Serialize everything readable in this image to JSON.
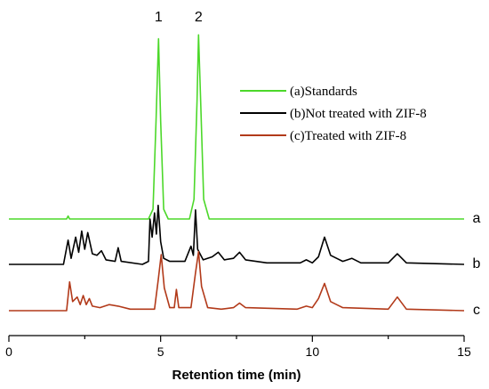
{
  "chart_data": {
    "type": "line",
    "xlabel": "Retention time (min)",
    "ylabel": "",
    "xlim": [
      0,
      15
    ],
    "x_ticks": [
      0,
      5,
      10,
      15
    ],
    "grid": false,
    "legend_position": "top-right",
    "peak_labels": [
      {
        "text": "1",
        "x": 4.93
      },
      {
        "text": "2",
        "x": 6.25
      }
    ],
    "series": [
      {
        "name": "(a)Standards",
        "trace_label": "a",
        "color": "#4cd82a",
        "points": [
          [
            0,
            0
          ],
          [
            1.9,
            0
          ],
          [
            1.95,
            0.15
          ],
          [
            2.0,
            0
          ],
          [
            4.6,
            0
          ],
          [
            4.75,
            0.5
          ],
          [
            4.85,
            5.0
          ],
          [
            4.93,
            9.2
          ],
          [
            5.0,
            5.0
          ],
          [
            5.1,
            0.5
          ],
          [
            5.25,
            0
          ],
          [
            5.95,
            0
          ],
          [
            6.1,
            1.0
          ],
          [
            6.2,
            6.0
          ],
          [
            6.25,
            9.4
          ],
          [
            6.32,
            6.0
          ],
          [
            6.42,
            1.0
          ],
          [
            6.6,
            0
          ],
          [
            15,
            0
          ]
        ]
      },
      {
        "name": "(b)Not treated with ZIF-8",
        "trace_label": "b",
        "color": "#000000",
        "points": [
          [
            0,
            0
          ],
          [
            1.8,
            0
          ],
          [
            1.95,
            1.6
          ],
          [
            2.05,
            0.4
          ],
          [
            2.2,
            1.8
          ],
          [
            2.3,
            0.8
          ],
          [
            2.4,
            2.2
          ],
          [
            2.5,
            1.0
          ],
          [
            2.6,
            2.1
          ],
          [
            2.75,
            0.7
          ],
          [
            2.9,
            0.6
          ],
          [
            3.05,
            0.9
          ],
          [
            3.2,
            0.3
          ],
          [
            3.5,
            0.2
          ],
          [
            3.6,
            1.1
          ],
          [
            3.7,
            0.2
          ],
          [
            4.4,
            0
          ],
          [
            4.6,
            0.2
          ],
          [
            4.65,
            3.0
          ],
          [
            4.72,
            1.8
          ],
          [
            4.8,
            3.4
          ],
          [
            4.86,
            2.0
          ],
          [
            4.92,
            3.9
          ],
          [
            5.0,
            1.5
          ],
          [
            5.1,
            0.4
          ],
          [
            5.3,
            0.2
          ],
          [
            5.8,
            0.2
          ],
          [
            6.0,
            1.2
          ],
          [
            6.08,
            0.6
          ],
          [
            6.15,
            3.6
          ],
          [
            6.22,
            1.0
          ],
          [
            6.4,
            0.3
          ],
          [
            6.7,
            0.5
          ],
          [
            6.9,
            0.8
          ],
          [
            7.1,
            0.3
          ],
          [
            7.4,
            0.4
          ],
          [
            7.6,
            0.8
          ],
          [
            7.8,
            0.3
          ],
          [
            8.5,
            0.1
          ],
          [
            9.6,
            0.1
          ],
          [
            9.8,
            0.3
          ],
          [
            10.0,
            0.1
          ],
          [
            10.2,
            0.5
          ],
          [
            10.4,
            1.8
          ],
          [
            10.6,
            0.6
          ],
          [
            11.0,
            0.2
          ],
          [
            11.3,
            0.4
          ],
          [
            11.6,
            0.1
          ],
          [
            12.5,
            0.1
          ],
          [
            12.8,
            0.7
          ],
          [
            13.1,
            0.1
          ],
          [
            15,
            0
          ]
        ]
      },
      {
        "name": "(c)Treated with ZIF-8",
        "trace_label": "c",
        "color": "#b23a1a",
        "points": [
          [
            0,
            0
          ],
          [
            1.9,
            0
          ],
          [
            2.0,
            1.9
          ],
          [
            2.1,
            0.6
          ],
          [
            2.25,
            0.9
          ],
          [
            2.35,
            0.4
          ],
          [
            2.45,
            1.0
          ],
          [
            2.55,
            0.4
          ],
          [
            2.65,
            0.8
          ],
          [
            2.75,
            0.3
          ],
          [
            3.0,
            0.2
          ],
          [
            3.3,
            0.4
          ],
          [
            3.6,
            0.3
          ],
          [
            4.0,
            0.1
          ],
          [
            4.8,
            0.1
          ],
          [
            4.92,
            2.0
          ],
          [
            5.02,
            3.7
          ],
          [
            5.12,
            1.5
          ],
          [
            5.3,
            0.2
          ],
          [
            5.45,
            0.2
          ],
          [
            5.52,
            1.4
          ],
          [
            5.6,
            0.2
          ],
          [
            6.0,
            0.2
          ],
          [
            6.15,
            2.5
          ],
          [
            6.25,
            3.9
          ],
          [
            6.35,
            1.6
          ],
          [
            6.55,
            0.2
          ],
          [
            7.0,
            0.1
          ],
          [
            7.4,
            0.2
          ],
          [
            7.6,
            0.5
          ],
          [
            7.8,
            0.2
          ],
          [
            9.5,
            0.1
          ],
          [
            9.8,
            0.3
          ],
          [
            10.0,
            0.2
          ],
          [
            10.2,
            0.8
          ],
          [
            10.4,
            1.8
          ],
          [
            10.6,
            0.6
          ],
          [
            11.0,
            0.2
          ],
          [
            12.5,
            0.1
          ],
          [
            12.8,
            0.9
          ],
          [
            13.1,
            0.1
          ],
          [
            15,
            0
          ]
        ]
      }
    ]
  }
}
